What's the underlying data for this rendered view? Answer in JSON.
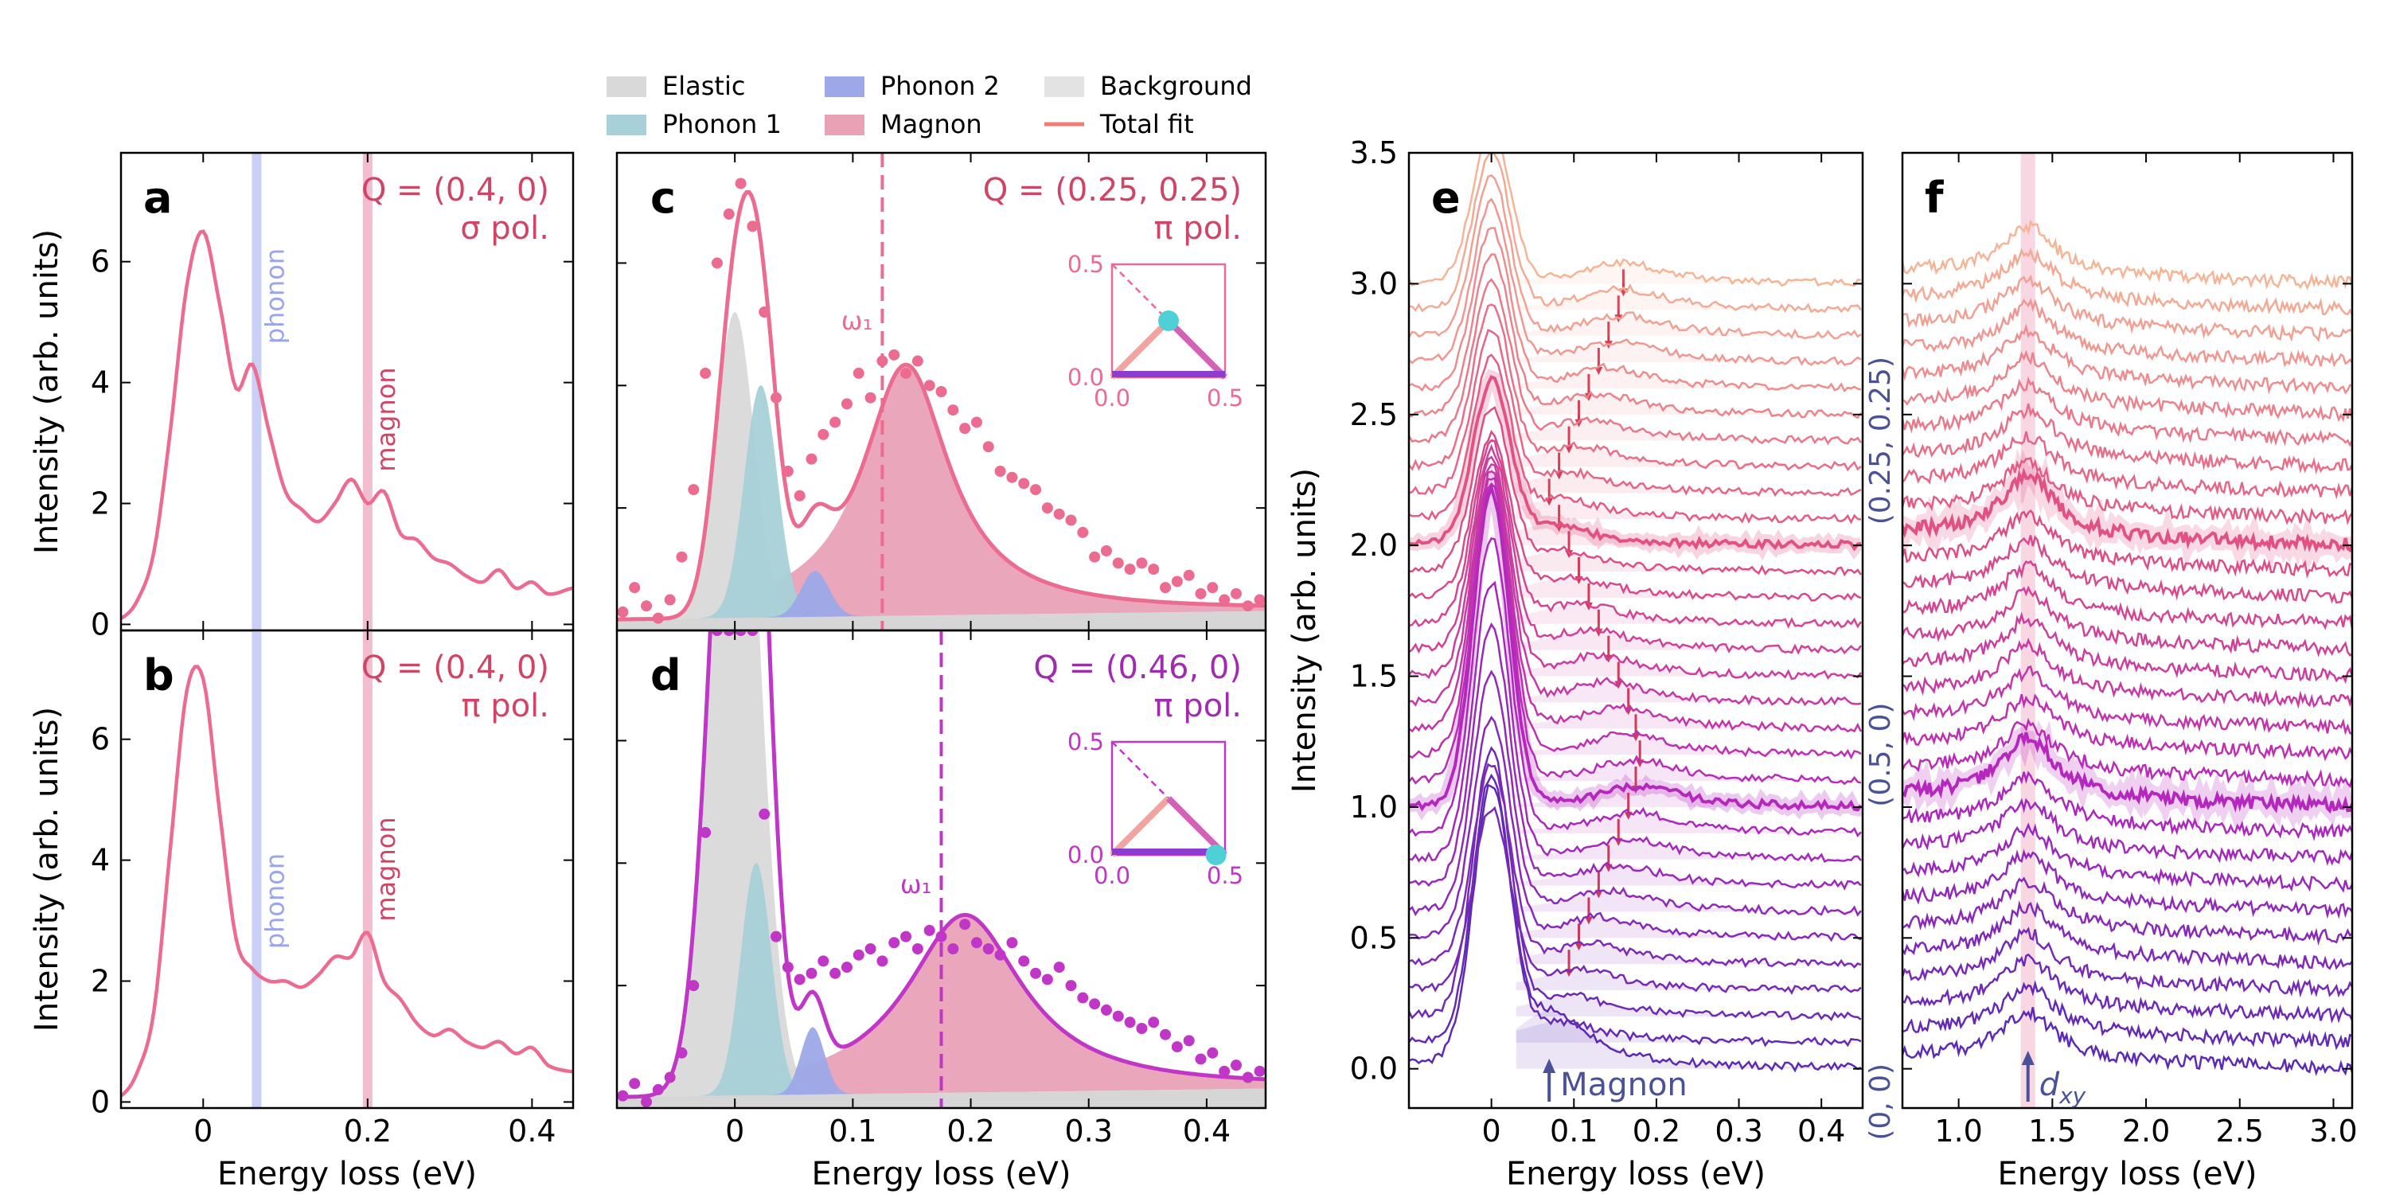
{
  "figure": {
    "legend": [
      {
        "label": "Elastic",
        "color": "#d9d9d9",
        "kind": "patch"
      },
      {
        "label": "Phonon 1",
        "color": "#a8d0d8",
        "kind": "patch"
      },
      {
        "label": "Phonon 2",
        "color": "#9ca8e8",
        "kind": "patch"
      },
      {
        "label": "Magnon",
        "color": "#e9a1b6",
        "kind": "patch"
      },
      {
        "label": "Background",
        "color": "#e3e3e3",
        "kind": "patch"
      },
      {
        "label": "Total fit",
        "color": "#f07a7a",
        "kind": "line"
      }
    ],
    "colors": {
      "pink": "#ec6b90",
      "purple": "#c037c8",
      "phonon_band": "#c9cff5",
      "magnon_band": "#f3bdd0",
      "violet_dark": "#5b2ab5",
      "label_navy": "#4a5199",
      "red_arrow": "#d53b50"
    }
  },
  "chart_data": [
    {
      "panel": "a",
      "type": "line",
      "annotation_lines": [
        "Q = (0.4, 0)",
        "σ pol."
      ],
      "band_labels": [
        "phonon",
        "magnon"
      ],
      "xlabel": "",
      "ylabel": "Intensity (arb. units)",
      "xlim": [
        -0.1,
        0.45
      ],
      "ylim": [
        -0.1,
        7.8
      ],
      "yticks": [
        "0",
        "2",
        "4",
        "6"
      ],
      "bands": [
        {
          "x": 0.065,
          "name": "phonon"
        },
        {
          "x": 0.2,
          "name": "magnon"
        }
      ],
      "x": [
        -0.1,
        -0.08,
        -0.06,
        -0.04,
        -0.02,
        0,
        0.02,
        0.04,
        0.06,
        0.08,
        0.1,
        0.12,
        0.14,
        0.16,
        0.18,
        0.2,
        0.22,
        0.24,
        0.26,
        0.28,
        0.3,
        0.32,
        0.34,
        0.36,
        0.38,
        0.4,
        0.42,
        0.45
      ],
      "y": [
        0.1,
        0.4,
        1.2,
        3.2,
        5.6,
        6.5,
        5.3,
        3.9,
        4.3,
        3.2,
        2.2,
        1.9,
        1.7,
        2.0,
        2.4,
        2.0,
        2.2,
        1.5,
        1.4,
        1.1,
        1.0,
        0.8,
        0.7,
        0.9,
        0.6,
        0.7,
        0.5,
        0.6
      ]
    },
    {
      "panel": "b",
      "type": "line",
      "annotation_lines": [
        "Q = (0.4, 0)",
        "π pol."
      ],
      "band_labels": [
        "phonon",
        "magnon"
      ],
      "xlabel": "Energy loss (eV)",
      "ylabel": "Intensity (arb. units)",
      "xlim": [
        -0.1,
        0.45
      ],
      "ylim": [
        -0.1,
        7.8
      ],
      "xticks": [
        "0",
        "0.2",
        "0.4"
      ],
      "yticks": [
        "0",
        "2",
        "4",
        "6"
      ],
      "x": [
        -0.1,
        -0.08,
        -0.06,
        -0.04,
        -0.02,
        0,
        0.02,
        0.04,
        0.06,
        0.08,
        0.1,
        0.12,
        0.14,
        0.16,
        0.18,
        0.2,
        0.22,
        0.24,
        0.26,
        0.28,
        0.3,
        0.32,
        0.34,
        0.36,
        0.38,
        0.4,
        0.42,
        0.45
      ],
      "y": [
        0.1,
        0.5,
        1.5,
        4.2,
        6.8,
        7.0,
        4.8,
        2.7,
        2.2,
        2.0,
        2.0,
        1.9,
        2.1,
        2.4,
        2.4,
        2.8,
        2.0,
        1.7,
        1.3,
        1.1,
        1.2,
        1.0,
        0.9,
        1.0,
        0.8,
        0.9,
        0.6,
        0.5
      ]
    },
    {
      "panel": "c",
      "type": "line",
      "annotation_lines": [
        "Q = (0.25, 0.25)",
        "π pol."
      ],
      "omega_label": "ω₁",
      "omega1": 0.125,
      "xlabel": "",
      "ylabel": "",
      "xlim": [
        -0.1,
        0.45
      ],
      "ylim": [
        0,
        7.8
      ],
      "components": {
        "elastic": {
          "center": 0.0,
          "amp": 5.0,
          "sigma": 0.016
        },
        "phonon1": {
          "center": 0.022,
          "amp": 3.8,
          "sigma": 0.014
        },
        "phonon2": {
          "center": 0.068,
          "amp": 0.75,
          "sigma": 0.012
        },
        "magnon": {
          "center": 0.145,
          "amp": 4.1,
          "width": 0.09
        }
      },
      "points_x": [
        -0.095,
        -0.085,
        -0.075,
        -0.065,
        -0.055,
        -0.045,
        -0.035,
        -0.025,
        -0.015,
        -0.005,
        0.005,
        0.015,
        0.025,
        0.035,
        0.045,
        0.055,
        0.065,
        0.075,
        0.085,
        0.095,
        0.105,
        0.115,
        0.125,
        0.135,
        0.145,
        0.155,
        0.165,
        0.175,
        0.185,
        0.195,
        0.205,
        0.215,
        0.225,
        0.235,
        0.245,
        0.255,
        0.265,
        0.275,
        0.285,
        0.295,
        0.305,
        0.315,
        0.325,
        0.335,
        0.345,
        0.355,
        0.365,
        0.375,
        0.385,
        0.395,
        0.405,
        0.415,
        0.425,
        0.435,
        0.445
      ],
      "points_y": [
        0.3,
        0.7,
        0.4,
        0.2,
        0.5,
        1.2,
        2.3,
        4.2,
        6.0,
        6.8,
        7.3,
        6.6,
        5.2,
        3.8,
        2.6,
        2.2,
        2.8,
        3.2,
        3.4,
        3.7,
        4.2,
        3.8,
        4.4,
        4.5,
        4.2,
        4.4,
        4.0,
        3.9,
        3.6,
        3.3,
        3.4,
        3.0,
        2.6,
        2.5,
        2.4,
        2.3,
        2.0,
        1.9,
        1.8,
        1.6,
        1.2,
        1.3,
        1.1,
        1.0,
        1.1,
        1.0,
        0.7,
        0.8,
        0.9,
        0.6,
        0.7,
        0.5,
        0.6,
        0.4,
        0.5
      ],
      "inset": {
        "range": [
          0.0,
          0.5
        ],
        "ticks": [
          "0.0",
          "0.5"
        ],
        "yticks": [
          "0.0",
          "0.5"
        ],
        "point": [
          0.25,
          0.25
        ]
      }
    },
    {
      "panel": "d",
      "type": "line",
      "annotation_lines": [
        "Q = (0.46, 0)",
        "π pol."
      ],
      "omega_label": "ω₁",
      "omega1": 0.175,
      "xlabel": "Energy loss (eV)",
      "ylabel": "",
      "xlim": [
        -0.1,
        0.45
      ],
      "ylim": [
        0,
        7.8
      ],
      "xticks": [
        "0",
        "0.1",
        "0.2",
        "0.3",
        "0.4"
      ],
      "components": {
        "elastic": {
          "center": 0.0,
          "amp": 13.0,
          "sigma": 0.02
        },
        "phonon1": {
          "center": 0.018,
          "amp": 3.8,
          "sigma": 0.013
        },
        "phonon2": {
          "center": 0.066,
          "amp": 1.1,
          "sigma": 0.01
        },
        "magnon": {
          "center": 0.195,
          "amp": 2.9,
          "width": 0.12
        }
      },
      "points_x": [
        -0.095,
        -0.085,
        -0.075,
        -0.065,
        -0.055,
        -0.045,
        -0.035,
        -0.025,
        -0.015,
        -0.005,
        0.005,
        0.015,
        0.025,
        0.035,
        0.045,
        0.055,
        0.065,
        0.075,
        0.085,
        0.095,
        0.105,
        0.115,
        0.125,
        0.135,
        0.145,
        0.155,
        0.165,
        0.175,
        0.185,
        0.195,
        0.205,
        0.215,
        0.225,
        0.235,
        0.245,
        0.255,
        0.265,
        0.275,
        0.285,
        0.295,
        0.305,
        0.315,
        0.325,
        0.335,
        0.345,
        0.355,
        0.365,
        0.375,
        0.385,
        0.395,
        0.405,
        0.415,
        0.425,
        0.435,
        0.445
      ],
      "points_y": [
        0.2,
        0.4,
        0.1,
        0.3,
        0.5,
        0.9,
        2.0,
        4.5,
        7.8,
        7.8,
        7.8,
        7.8,
        4.8,
        2.8,
        2.3,
        2.1,
        2.2,
        2.4,
        2.2,
        2.3,
        2.5,
        2.6,
        2.4,
        2.7,
        2.8,
        2.6,
        2.9,
        2.8,
        2.6,
        3.0,
        2.7,
        2.6,
        2.5,
        2.7,
        2.4,
        2.2,
        2.1,
        2.3,
        2.0,
        1.8,
        1.7,
        1.6,
        1.5,
        1.4,
        1.3,
        1.4,
        1.2,
        1.0,
        1.1,
        0.8,
        0.9,
        0.6,
        0.7,
        0.5,
        0.6
      ],
      "inset": {
        "range": [
          0.0,
          0.5
        ],
        "ticks": [
          "0.0",
          "0.5"
        ],
        "yticks": [
          "0.0",
          "0.5"
        ],
        "point": [
          0.46,
          0.0
        ]
      }
    },
    {
      "panel": "e",
      "type": "line",
      "xlabel": "Energy loss (eV)",
      "ylabel": "Intensity (arb. units)",
      "xlim": [
        -0.1,
        0.45
      ],
      "ylim": [
        -0.15,
        3.5
      ],
      "xticks": [
        "0",
        "0.1",
        "0.2",
        "0.3",
        "0.4"
      ],
      "yticks": [
        "0.0",
        "0.5",
        "1.0",
        "1.5",
        "2.0",
        "2.5",
        "3.0",
        "3.5"
      ],
      "n_spectra": 31,
      "offset_step": 0.1,
      "highlight_indices": [
        10,
        20
      ],
      "arrow_label": "Magnon",
      "magnon_peaks": [
        0.07,
        0.082,
        0.094,
        0.106,
        0.118,
        0.13,
        0.142,
        0.154,
        0.166,
        0.175,
        0.18,
        0.175,
        0.166,
        0.154,
        0.142,
        0.13,
        0.118,
        0.106,
        0.094,
        0.082,
        0.07,
        0.082,
        0.094,
        0.106,
        0.118,
        0.13,
        0.142,
        0.154,
        0.16,
        0.16,
        0.16
      ]
    },
    {
      "panel": "f",
      "type": "line",
      "xlabel": "Energy loss (eV)",
      "ylabel": "",
      "xlim": [
        0.7,
        3.1
      ],
      "ylim": [
        -0.15,
        3.5
      ],
      "xticks": [
        "1.0",
        "1.5",
        "2.0",
        "2.5",
        "3.0"
      ],
      "n_spectra": 31,
      "offset_step": 0.1,
      "dxy_peak": 1.37,
      "arrow_label": "d",
      "arrow_label_sub": "xy",
      "q_labels": [
        "(0, 0)",
        "(0.5, 0)",
        "(0.25, 0.25)"
      ]
    }
  ]
}
